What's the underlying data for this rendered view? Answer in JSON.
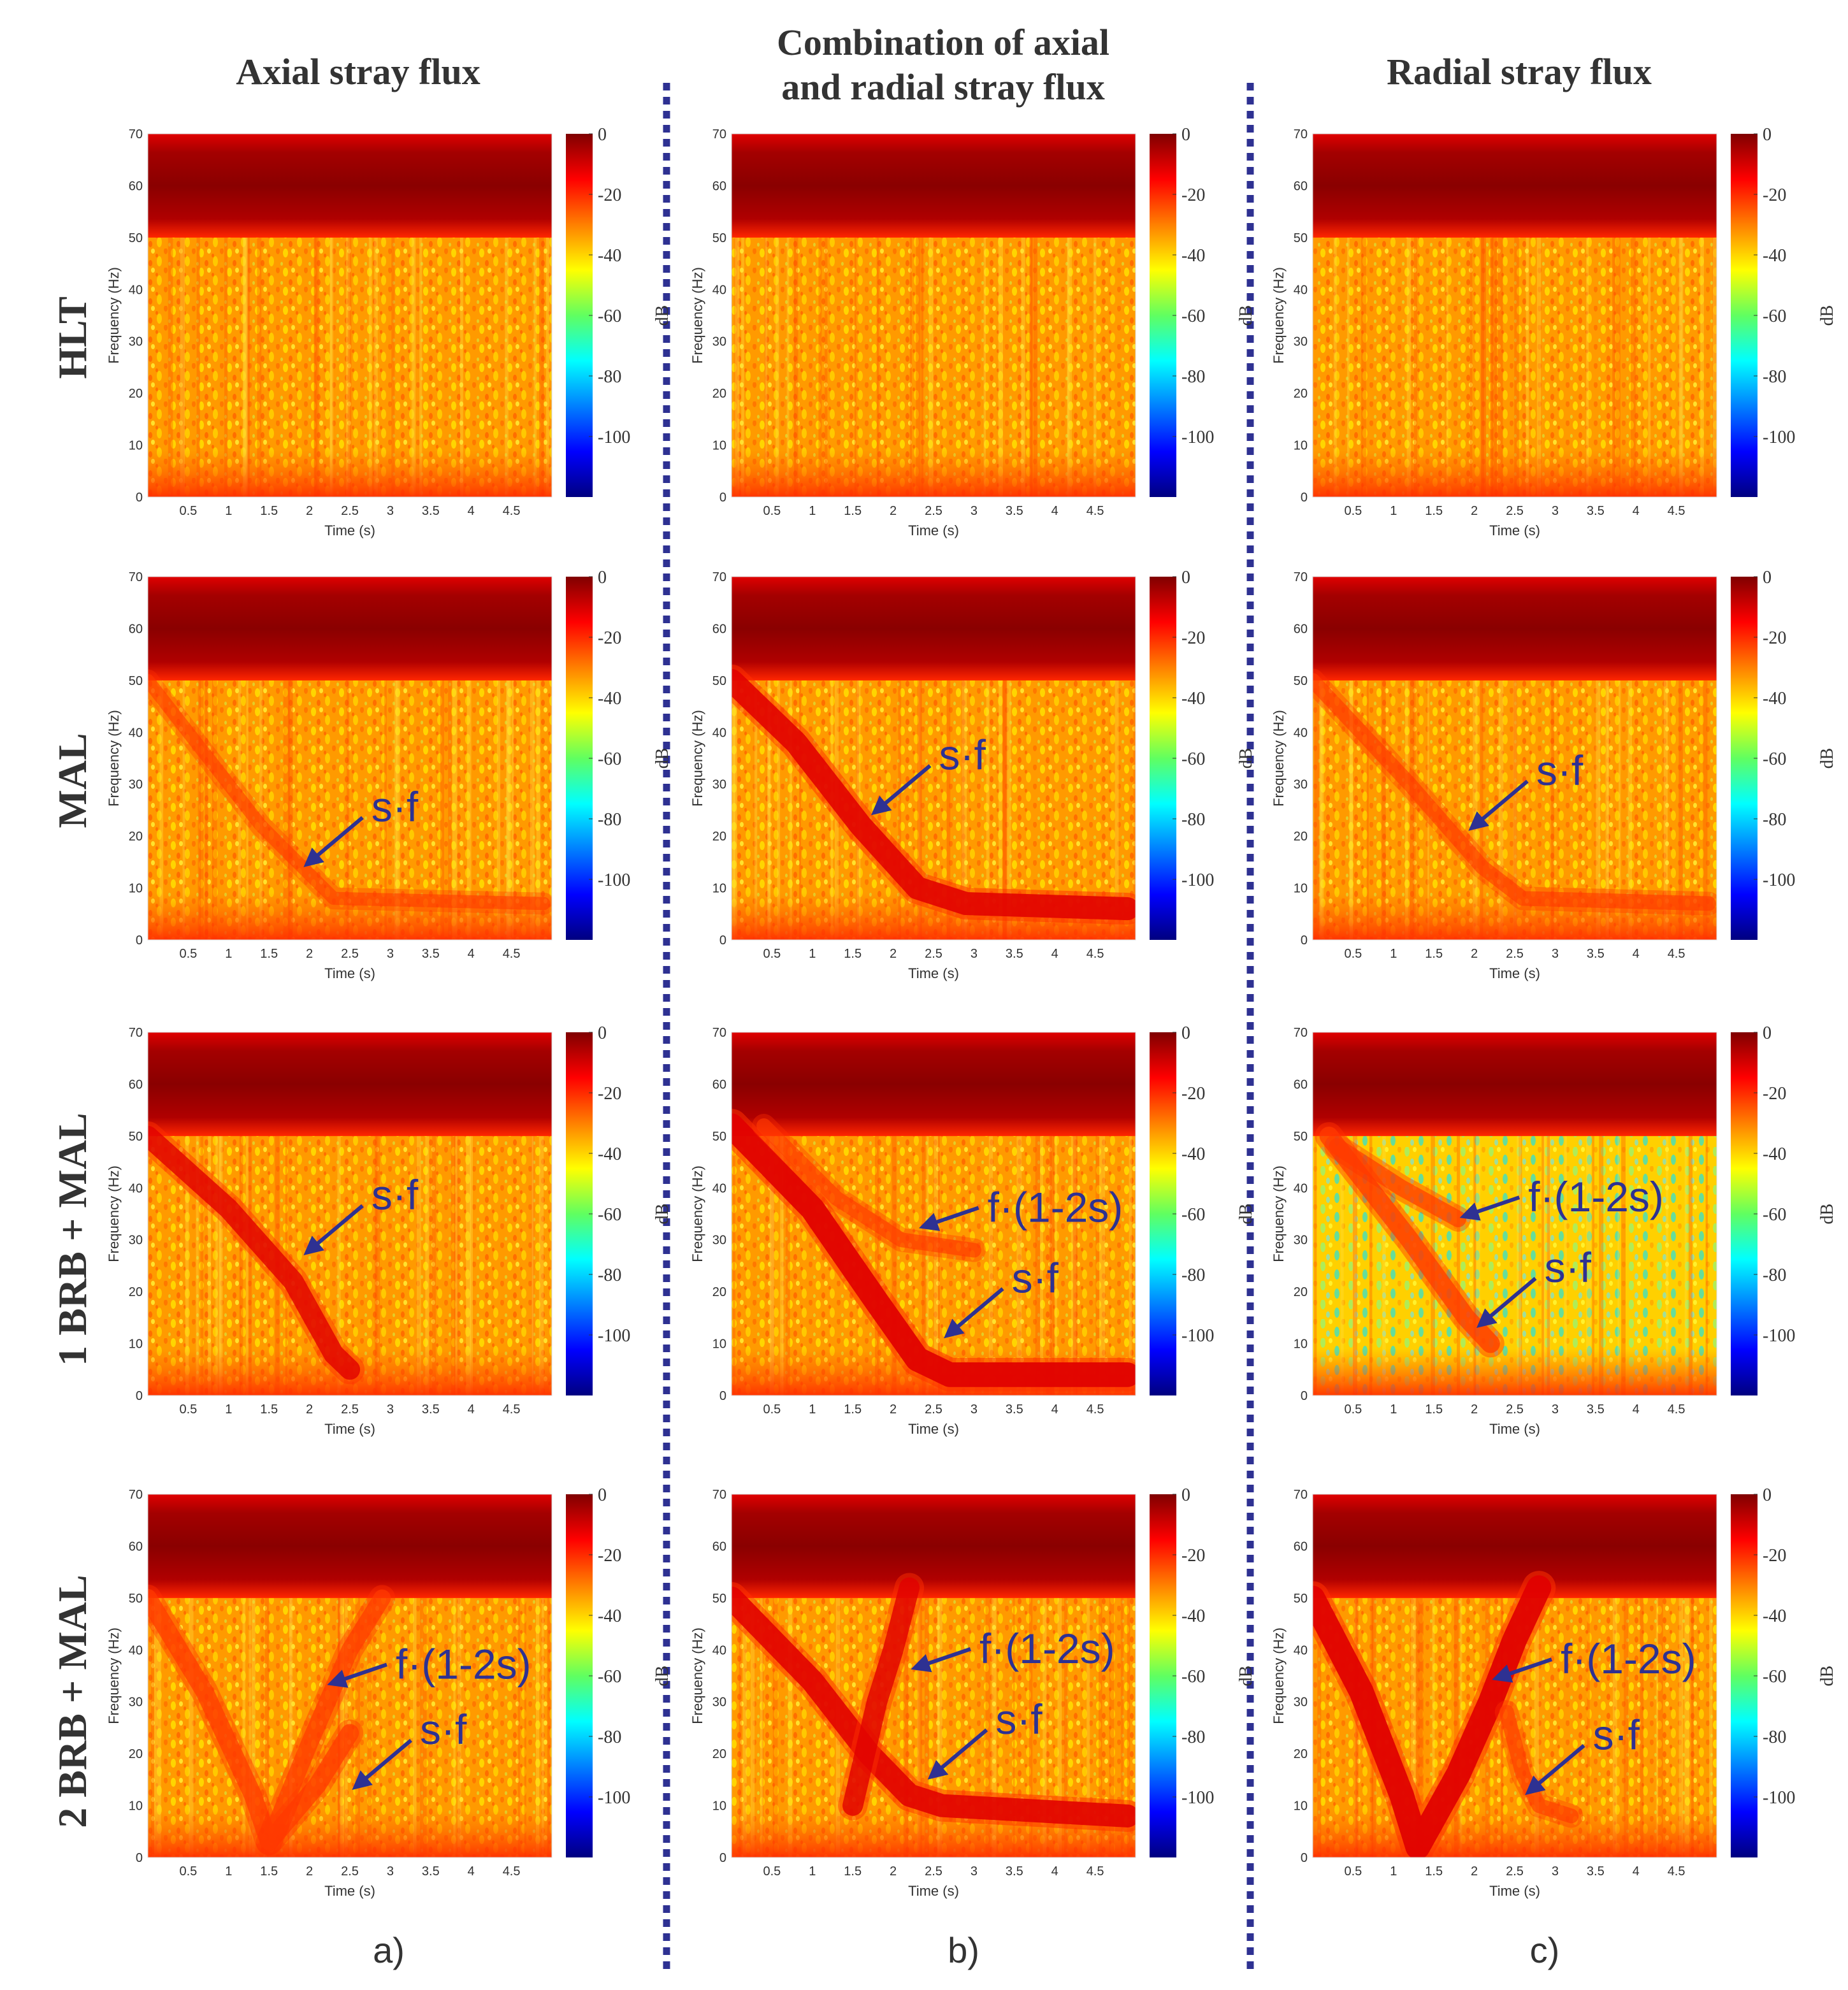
{
  "chart_data": {
    "type": "heatmap",
    "title": "",
    "columns": [
      {
        "title": "Axial stray flux",
        "sublabel": "a)"
      },
      {
        "title": "Combination of axial and radial stray flux",
        "title_lines": [
          "Combination of axial",
          "and radial stray flux"
        ],
        "sublabel": "b)"
      },
      {
        "title": "Radial stray flux",
        "sublabel": "c)"
      }
    ],
    "rows": [
      {
        "label": "HLT"
      },
      {
        "label": "MAL"
      },
      {
        "label": "1 BRB + MAL"
      },
      {
        "label": "2 BRB + MAL"
      }
    ],
    "xlabel": "Time (s)",
    "ylabel": "Frequency (Hz)",
    "xlim": [
      0,
      5
    ],
    "ylim": [
      0,
      70
    ],
    "xticks": [
      "0.5",
      "1",
      "1.5",
      "2",
      "2.5",
      "3",
      "3.5",
      "4",
      "4.5"
    ],
    "xtick_values": [
      0.5,
      1,
      1.5,
      2,
      2.5,
      3,
      3.5,
      4,
      4.5
    ],
    "yticks": [
      "0",
      "10",
      "20",
      "30",
      "40",
      "50",
      "60",
      "70"
    ],
    "ytick_values": [
      0,
      10,
      20,
      30,
      40,
      50,
      60,
      70
    ],
    "colorbar": {
      "label": "dB",
      "range": [
        -120,
        0
      ],
      "ticks": [
        "0",
        "-20",
        "-40",
        "-60",
        "-80",
        "-100"
      ],
      "tick_values": [
        0,
        -20,
        -40,
        -60,
        -80,
        -100
      ]
    },
    "panels": [
      {
        "row": 0,
        "col": 0,
        "fundamental_hz": 60,
        "annotations": [],
        "traces": [],
        "sf_visibility": "none"
      },
      {
        "row": 0,
        "col": 1,
        "fundamental_hz": 60,
        "annotations": [],
        "traces": [],
        "sf_visibility": "none"
      },
      {
        "row": 0,
        "col": 2,
        "fundamental_hz": 60,
        "annotations": [],
        "traces": [],
        "sf_visibility": "none"
      },
      {
        "row": 1,
        "col": 0,
        "fundamental_hz": 60,
        "annotations": [
          {
            "text": "s·f",
            "point_time_s": 1.9,
            "point_freq_hz": 14
          }
        ],
        "traces": [
          {
            "name": "s·f",
            "strength": 0.25,
            "points": [
              [
                0,
                50
              ],
              [
                1.4,
                22
              ],
              [
                2.3,
                8
              ],
              [
                4.9,
                7
              ]
            ]
          }
        ]
      },
      {
        "row": 1,
        "col": 1,
        "fundamental_hz": 60,
        "annotations": [
          {
            "text": "s·f",
            "point_time_s": 1.7,
            "point_freq_hz": 24
          }
        ],
        "traces": [
          {
            "name": "s·f",
            "strength": 0.85,
            "points": [
              [
                0,
                50
              ],
              [
                0.8,
                38
              ],
              [
                1.6,
                22
              ],
              [
                2.3,
                10
              ],
              [
                2.9,
                7
              ],
              [
                4.9,
                6
              ]
            ]
          }
        ]
      },
      {
        "row": 1,
        "col": 2,
        "fundamental_hz": 60,
        "annotations": [
          {
            "text": "s·f",
            "point_time_s": 1.9,
            "point_freq_hz": 21
          }
        ],
        "traces": [
          {
            "name": "s·f",
            "strength": 0.35,
            "points": [
              [
                0,
                50
              ],
              [
                1.2,
                30
              ],
              [
                2.1,
                14
              ],
              [
                2.6,
                8
              ],
              [
                4.9,
                7
              ]
            ]
          }
        ]
      },
      {
        "row": 2,
        "col": 0,
        "fundamental_hz": 60,
        "annotations": [
          {
            "text": "s·f",
            "point_time_s": 1.9,
            "point_freq_hz": 27
          }
        ],
        "traces": [
          {
            "name": "s·f",
            "strength": 0.7,
            "points": [
              [
                0,
                50
              ],
              [
                1.0,
                36
              ],
              [
                1.8,
                22
              ],
              [
                2.3,
                8
              ],
              [
                2.5,
                5
              ]
            ]
          }
        ]
      },
      {
        "row": 2,
        "col": 1,
        "fundamental_hz": 60,
        "annotations": [
          {
            "text": "f·(1-2s)",
            "point_time_s": 2.3,
            "point_freq_hz": 32
          },
          {
            "text": "s·f",
            "point_time_s": 2.6,
            "point_freq_hz": 11
          }
        ],
        "traces": [
          {
            "name": "s·f",
            "strength": 0.95,
            "points": [
              [
                0,
                52
              ],
              [
                1.0,
                36
              ],
              [
                1.8,
                18
              ],
              [
                2.3,
                7
              ],
              [
                2.7,
                4
              ],
              [
                4.9,
                4
              ]
            ]
          },
          {
            "name": "f·(1-2s)",
            "strength": 0.35,
            "points": [
              [
                0.4,
                52
              ],
              [
                1.3,
                38
              ],
              [
                2.1,
                30
              ],
              [
                3.0,
                28
              ]
            ]
          }
        ]
      },
      {
        "row": 2,
        "col": 2,
        "fundamental_hz": 60,
        "annotations": [
          {
            "text": "f·(1-2s)",
            "point_time_s": 1.8,
            "point_freq_hz": 34
          },
          {
            "text": "s·f",
            "point_time_s": 2.0,
            "point_freq_hz": 13
          }
        ],
        "traces": [
          {
            "name": "s·f",
            "strength": 0.6,
            "points": [
              [
                0.2,
                50
              ],
              [
                1.2,
                30
              ],
              [
                1.9,
                15
              ],
              [
                2.2,
                10
              ]
            ]
          },
          {
            "name": "f·(1-2s)",
            "strength": 0.45,
            "points": [
              [
                0.3,
                48
              ],
              [
                1.1,
                40
              ],
              [
                1.8,
                34
              ]
            ]
          }
        ],
        "noise_floor": "low"
      },
      {
        "row": 3,
        "col": 0,
        "fundamental_hz": 60,
        "annotations": [
          {
            "text": "f·(1-2s)",
            "point_time_s": 2.2,
            "point_freq_hz": 33
          },
          {
            "text": "s·f",
            "point_time_s": 2.5,
            "point_freq_hz": 13
          }
        ],
        "traces": [
          {
            "name": "s·f",
            "strength": 0.55,
            "points": [
              [
                0,
                50
              ],
              [
                0.7,
                32
              ],
              [
                1.3,
                12
              ],
              [
                1.5,
                3
              ],
              [
                2.1,
                14
              ],
              [
                2.5,
                24
              ]
            ]
          },
          {
            "name": "f·(1-2s)",
            "strength": 0.5,
            "points": [
              [
                1.5,
                3
              ],
              [
                2.0,
                22
              ],
              [
                2.5,
                40
              ],
              [
                2.9,
                50
              ]
            ]
          }
        ]
      },
      {
        "row": 3,
        "col": 1,
        "fundamental_hz": 60,
        "annotations": [
          {
            "text": "f·(1-2s)",
            "point_time_s": 2.2,
            "point_freq_hz": 36
          },
          {
            "text": "s·f",
            "point_time_s": 2.4,
            "point_freq_hz": 15
          }
        ],
        "traces": [
          {
            "name": "s·f",
            "strength": 0.85,
            "points": [
              [
                0,
                50
              ],
              [
                1.0,
                34
              ],
              [
                1.7,
                20
              ],
              [
                2.2,
                12
              ],
              [
                2.6,
                10
              ],
              [
                4.9,
                8
              ]
            ]
          },
          {
            "name": "f·(1-2s)",
            "strength": 0.7,
            "points": [
              [
                1.5,
                10
              ],
              [
                1.8,
                30
              ],
              [
                2.0,
                40
              ],
              [
                2.2,
                52
              ]
            ]
          }
        ]
      },
      {
        "row": 3,
        "col": 2,
        "fundamental_hz": 60,
        "annotations": [
          {
            "text": "f·(1-2s)",
            "point_time_s": 2.2,
            "point_freq_hz": 34
          },
          {
            "text": "s·f",
            "point_time_s": 2.6,
            "point_freq_hz": 12
          }
        ],
        "traces": [
          {
            "name": "s·f",
            "strength": 0.95,
            "points": [
              [
                0,
                50
              ],
              [
                0.6,
                32
              ],
              [
                1.1,
                12
              ],
              [
                1.3,
                2
              ],
              [
                1.8,
                16
              ],
              [
                2.2,
                30
              ],
              [
                2.5,
                42
              ],
              [
                2.8,
                52
              ]
            ]
          },
          {
            "name": "s·f tail",
            "strength": 0.35,
            "points": [
              [
                2.4,
                28
              ],
              [
                2.6,
                16
              ],
              [
                2.8,
                10
              ],
              [
                3.2,
                8
              ]
            ]
          }
        ]
      }
    ]
  }
}
